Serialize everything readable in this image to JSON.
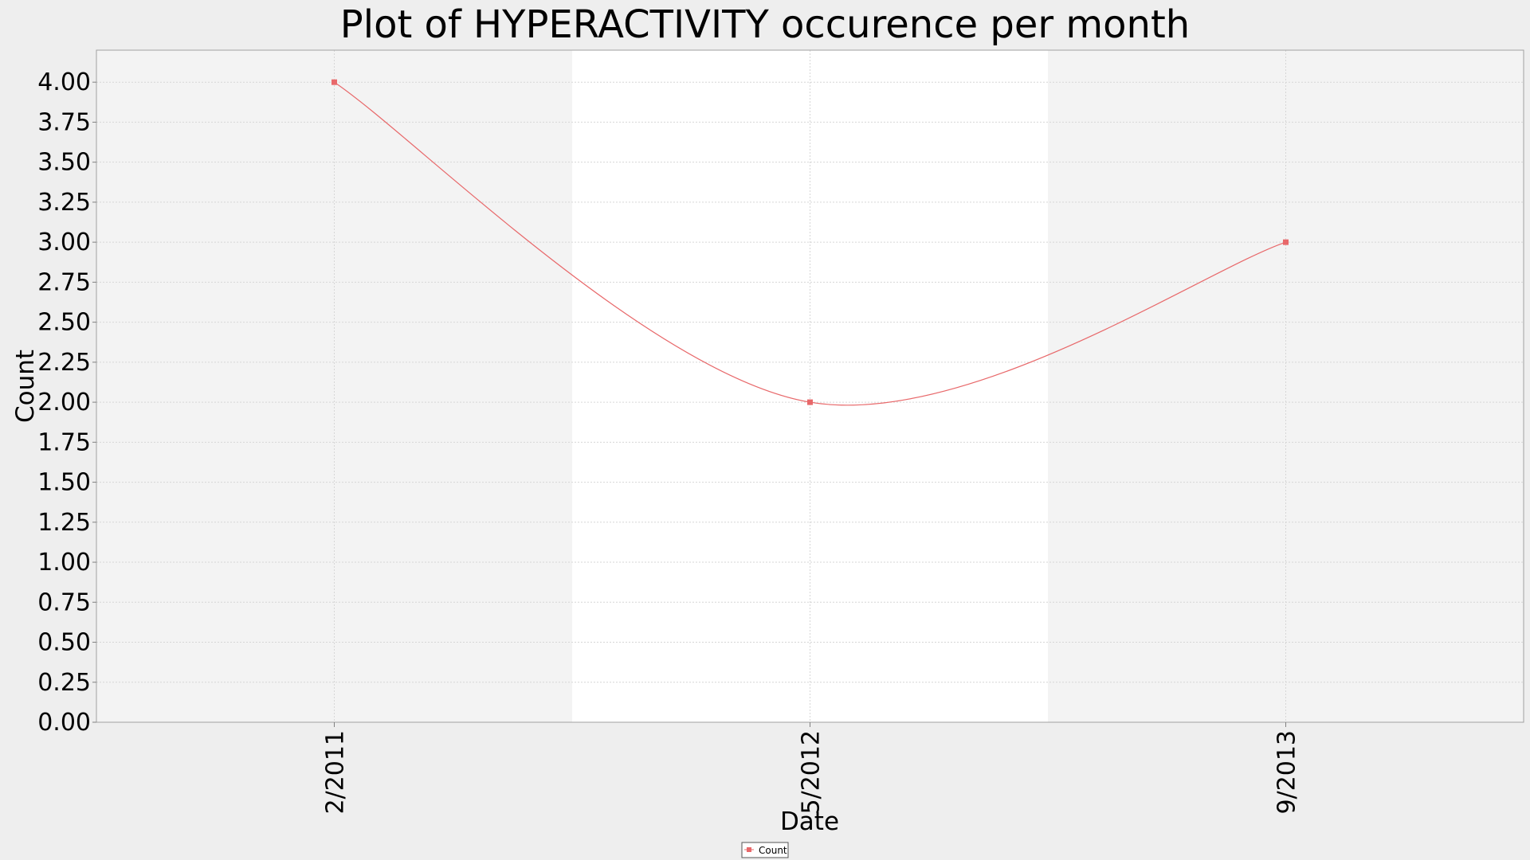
{
  "chart_data": {
    "type": "line",
    "title": "Plot of HYPERACTIVITY occurence per month",
    "xlabel": "Date",
    "ylabel": "Count",
    "x_ticks": [
      "2/2011",
      "5/2012",
      "9/2013"
    ],
    "y_ticks": [
      "0.00",
      "0.25",
      "0.50",
      "0.75",
      "1.00",
      "1.25",
      "1.50",
      "1.75",
      "2.00",
      "2.25",
      "2.50",
      "2.75",
      "3.00",
      "3.25",
      "3.50",
      "3.75",
      "4.00"
    ],
    "ylim": [
      0,
      4.2
    ],
    "grid": true,
    "legend_position": "bottom-center",
    "series": [
      {
        "name": "Count",
        "color": "#e8686a",
        "x": [
          "2/2011",
          "5/2012",
          "9/2013"
        ],
        "values": [
          4,
          2,
          3
        ]
      }
    ]
  }
}
